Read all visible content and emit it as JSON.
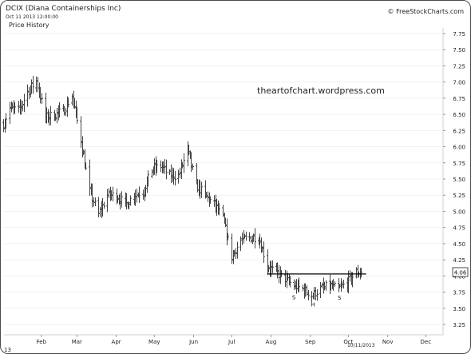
{
  "header": {
    "title": "DCIX (Diana Containerships Inc)",
    "date": "Oct 11 2013 12:00:00",
    "panel_label": "Price History",
    "credit": "© FreeStockCharts.com"
  },
  "watermark": "theartofchart.wordpress.com",
  "chart_data": {
    "type": "ohlc-bar",
    "price_axis": {
      "position": "right",
      "ticks": [
        "7.75",
        "7.50",
        "7.25",
        "7.00",
        "6.75",
        "6.50",
        "6.25",
        "6.00",
        "5.75",
        "5.50",
        "5.25",
        "5.00",
        "4.75",
        "4.50",
        "4.25",
        "4.00",
        "3.75",
        "3.50",
        "3.25"
      ],
      "ylim": [
        3.12,
        7.92
      ]
    },
    "x_axis": {
      "left_edge_label": "13",
      "months": [
        "Feb",
        "Mar",
        "Apr",
        "May",
        "Jun",
        "Jul",
        "Aug",
        "Sep",
        "Oct",
        "Nov",
        "Dec"
      ],
      "date_label": "10/11/2013"
    },
    "last_price": "4.06",
    "annotations": {
      "neckline": 4.03,
      "labels": [
        {
          "text": "S",
          "date": "2013-08-19",
          "price": 3.69
        },
        {
          "text": "H",
          "date": "2013-09-03",
          "price": 3.58
        },
        {
          "text": "S",
          "date": "2013-09-24",
          "price": 3.68
        }
      ]
    },
    "weekly_closes": [
      {
        "week": "2013-01-02",
        "close": 6.35
      },
      {
        "week": "2013-01-07",
        "close": 6.6
      },
      {
        "week": "2013-01-14",
        "close": 6.55
      },
      {
        "week": "2013-01-21",
        "close": 6.85
      },
      {
        "week": "2013-01-28",
        "close": 7.02
      },
      {
        "week": "2013-02-04",
        "close": 6.45
      },
      {
        "week": "2013-02-11",
        "close": 6.5
      },
      {
        "week": "2013-02-18",
        "close": 6.55
      },
      {
        "week": "2013-02-25",
        "close": 6.8
      },
      {
        "week": "2013-03-04",
        "close": 6.1
      },
      {
        "week": "2013-03-11",
        "close": 5.3
      },
      {
        "week": "2013-03-18",
        "close": 4.95
      },
      {
        "week": "2013-03-25",
        "close": 5.25
      },
      {
        "week": "2013-04-01",
        "close": 5.25
      },
      {
        "week": "2013-04-08",
        "close": 5.1
      },
      {
        "week": "2013-04-15",
        "close": 5.25
      },
      {
        "week": "2013-04-22",
        "close": 5.3
      },
      {
        "week": "2013-04-29",
        "close": 5.65
      },
      {
        "week": "2013-05-06",
        "close": 5.7
      },
      {
        "week": "2013-05-13",
        "close": 5.55
      },
      {
        "week": "2013-05-20",
        "close": 5.55
      },
      {
        "week": "2013-05-27",
        "close": 5.95
      },
      {
        "week": "2013-06-03",
        "close": 5.4
      },
      {
        "week": "2013-06-10",
        "close": 5.25
      },
      {
        "week": "2013-06-17",
        "close": 5.1
      },
      {
        "week": "2013-06-24",
        "close": 4.9
      },
      {
        "week": "2013-07-01",
        "close": 4.3
      },
      {
        "week": "2013-07-08",
        "close": 4.55
      },
      {
        "week": "2013-07-15",
        "close": 4.6
      },
      {
        "week": "2013-07-22",
        "close": 4.6
      },
      {
        "week": "2013-07-29",
        "close": 4.15
      },
      {
        "week": "2013-08-05",
        "close": 4.05
      },
      {
        "week": "2013-08-12",
        "close": 3.95
      },
      {
        "week": "2013-08-19",
        "close": 3.85
      },
      {
        "week": "2013-08-26",
        "close": 3.8
      },
      {
        "week": "2013-09-02",
        "close": 3.7
      },
      {
        "week": "2013-09-09",
        "close": 3.8
      },
      {
        "week": "2013-09-16",
        "close": 3.85
      },
      {
        "week": "2013-09-23",
        "close": 3.8
      },
      {
        "week": "2013-09-30",
        "close": 3.9
      },
      {
        "week": "2013-10-07",
        "close": 4.06
      }
    ]
  },
  "colors": {
    "bars": "#444444",
    "neckline": "#000000",
    "axis_text": "#222222"
  }
}
